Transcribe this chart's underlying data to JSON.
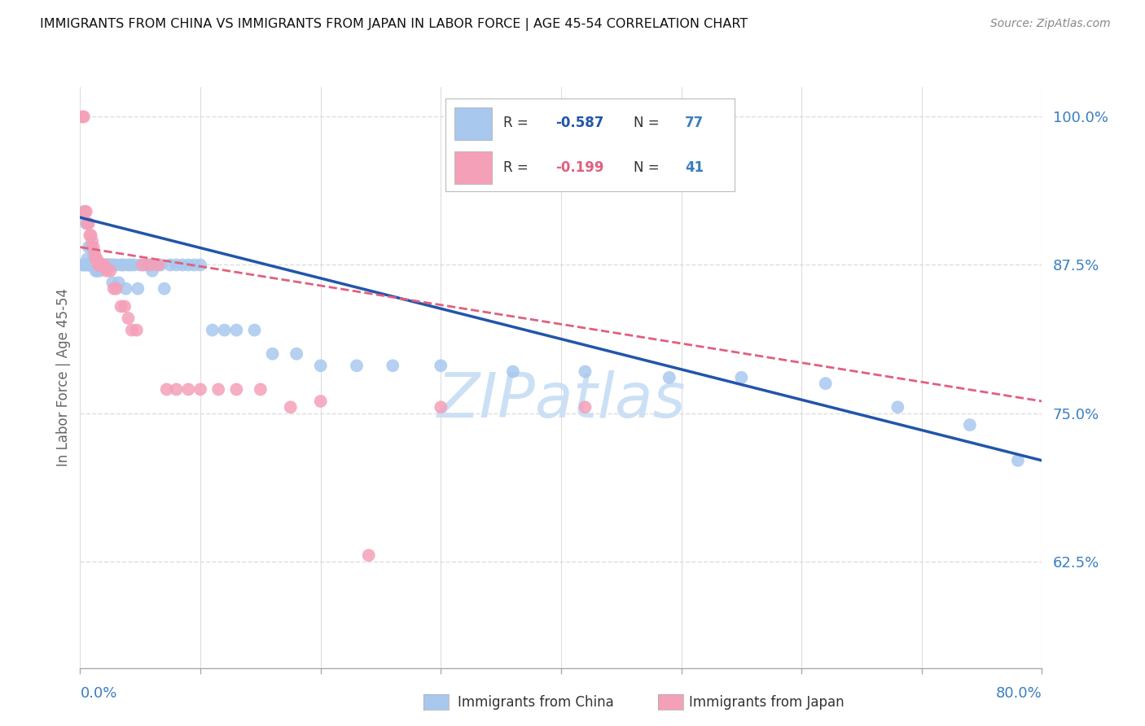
{
  "title": "IMMIGRANTS FROM CHINA VS IMMIGRANTS FROM JAPAN IN LABOR FORCE | AGE 45-54 CORRELATION CHART",
  "source": "Source: ZipAtlas.com",
  "ylabel": "In Labor Force | Age 45-54",
  "xmin": 0.0,
  "xmax": 0.8,
  "ymin": 0.535,
  "ymax": 1.025,
  "yticks": [
    0.625,
    0.75,
    0.875,
    1.0
  ],
  "ytick_labels": [
    "62.5%",
    "75.0%",
    "87.5%",
    "100.0%"
  ],
  "china_color": "#a8c8ee",
  "japan_color": "#f4a0b8",
  "china_line_color": "#2255aa",
  "japan_line_color": "#e06080",
  "background_color": "#ffffff",
  "grid_color": "#dddddd",
  "axis_color": "#aaaaaa",
  "label_color": "#3a7fc1",
  "china_scatter_x": [
    0.002,
    0.003,
    0.003,
    0.004,
    0.005,
    0.006,
    0.006,
    0.007,
    0.007,
    0.008,
    0.008,
    0.009,
    0.009,
    0.01,
    0.01,
    0.011,
    0.011,
    0.012,
    0.012,
    0.013,
    0.013,
    0.014,
    0.015,
    0.015,
    0.016,
    0.017,
    0.018,
    0.019,
    0.02,
    0.021,
    0.022,
    0.023,
    0.024,
    0.025,
    0.026,
    0.027,
    0.028,
    0.03,
    0.032,
    0.034,
    0.036,
    0.038,
    0.04,
    0.042,
    0.045,
    0.048,
    0.05,
    0.053,
    0.056,
    0.06,
    0.063,
    0.067,
    0.07,
    0.075,
    0.08,
    0.085,
    0.09,
    0.095,
    0.1,
    0.11,
    0.12,
    0.13,
    0.145,
    0.16,
    0.18,
    0.2,
    0.23,
    0.26,
    0.3,
    0.36,
    0.42,
    0.49,
    0.55,
    0.62,
    0.68,
    0.74,
    0.78
  ],
  "china_scatter_y": [
    0.875,
    0.92,
    0.875,
    0.875,
    0.91,
    0.88,
    0.875,
    0.89,
    0.875,
    0.875,
    0.875,
    0.875,
    0.89,
    0.875,
    0.875,
    0.88,
    0.875,
    0.875,
    0.875,
    0.87,
    0.875,
    0.87,
    0.875,
    0.875,
    0.87,
    0.875,
    0.875,
    0.875,
    0.875,
    0.875,
    0.875,
    0.875,
    0.875,
    0.875,
    0.875,
    0.86,
    0.875,
    0.875,
    0.86,
    0.875,
    0.875,
    0.855,
    0.875,
    0.875,
    0.875,
    0.855,
    0.875,
    0.875,
    0.875,
    0.87,
    0.875,
    0.875,
    0.855,
    0.875,
    0.875,
    0.875,
    0.875,
    0.875,
    0.875,
    0.82,
    0.82,
    0.82,
    0.82,
    0.8,
    0.8,
    0.79,
    0.79,
    0.79,
    0.79,
    0.785,
    0.785,
    0.78,
    0.78,
    0.775,
    0.755,
    0.74,
    0.71
  ],
  "japan_scatter_x": [
    0.002,
    0.003,
    0.004,
    0.005,
    0.006,
    0.007,
    0.008,
    0.009,
    0.01,
    0.011,
    0.012,
    0.013,
    0.014,
    0.015,
    0.016,
    0.018,
    0.02,
    0.022,
    0.025,
    0.028,
    0.03,
    0.034,
    0.037,
    0.04,
    0.043,
    0.047,
    0.052,
    0.058,
    0.065,
    0.072,
    0.08,
    0.09,
    0.1,
    0.115,
    0.13,
    0.15,
    0.175,
    0.2,
    0.24,
    0.3,
    0.42
  ],
  "japan_scatter_y": [
    1.0,
    1.0,
    0.92,
    0.92,
    0.91,
    0.91,
    0.9,
    0.9,
    0.895,
    0.89,
    0.885,
    0.88,
    0.88,
    0.875,
    0.875,
    0.875,
    0.875,
    0.87,
    0.87,
    0.855,
    0.855,
    0.84,
    0.84,
    0.83,
    0.82,
    0.82,
    0.875,
    0.875,
    0.875,
    0.77,
    0.77,
    0.77,
    0.77,
    0.77,
    0.77,
    0.77,
    0.755,
    0.76,
    0.63,
    0.755,
    0.755
  ],
  "china_line_x0": 0.0,
  "china_line_x1": 0.8,
  "china_line_y0": 0.915,
  "china_line_y1": 0.71,
  "japan_line_x0": 0.0,
  "japan_line_x1": 0.8,
  "japan_line_y0": 0.89,
  "japan_line_y1": 0.76,
  "watermark": "ZIPatlas",
  "watermark_color": "#cce0f5"
}
